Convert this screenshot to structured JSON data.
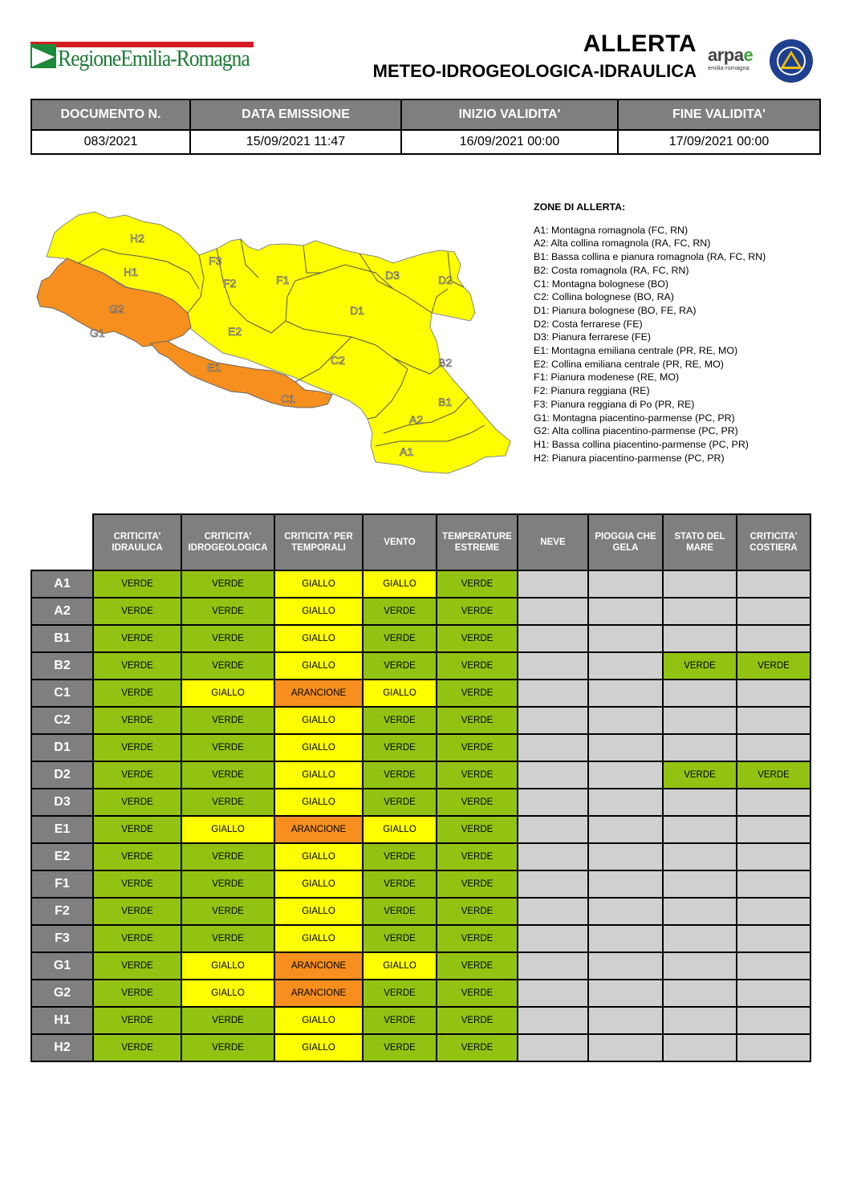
{
  "header": {
    "org_logo_text": "RegioneEmilia-Romagna",
    "title_line1": "ALLERTA",
    "title_line2": "METEO-IDROGEOLOGICA-IDRAULICA",
    "arpae_logo": {
      "name": "arpae",
      "sub": "emilia-romagna"
    },
    "civil_protection_logo_icon": "protezione-civile-emblem"
  },
  "document": {
    "headers": [
      "DOCUMENTO N.",
      "DATA EMISSIONE",
      "INIZIO VALIDITA'",
      "FINE VALIDITA'"
    ],
    "values": [
      "083/2021",
      "15/09/2021 11:47",
      "16/09/2021 00:00",
      "17/09/2021 00:00"
    ]
  },
  "map": {
    "labels": [
      "H2",
      "H1",
      "G2",
      "G1",
      "F3",
      "F2",
      "E2",
      "E1",
      "F1",
      "C1",
      "D3",
      "D2",
      "D1",
      "C2",
      "B2",
      "B1",
      "A2",
      "A1"
    ],
    "colors": {
      "orange": "#f78f1e",
      "yellow": "#fefe00"
    }
  },
  "legend": {
    "title": "ZONE DI ALLERTA:",
    "items": [
      "A1: Montagna romagnola (FC, RN)",
      "A2: Alta collina romagnola (RA, FC, RN)",
      "B1: Bassa collina e pianura romagnola (RA, FC, RN)",
      "B2: Costa romagnola (RA, FC, RN)",
      "C1: Montagna bolognese (BO)",
      "C2: Collina bolognese (BO, RA)",
      "D1: Pianura bolognese (BO, FE, RA)",
      "D2: Costa ferrarese (FE)",
      "D3: Pianura ferrarese (FE)",
      "E1: Montagna emiliana centrale (PR, RE, MO)",
      "E2: Collina emiliana centrale (PR, RE, MO)",
      "F1: Pianura modenese (RE, MO)",
      "F2: Pianura reggiana (RE)",
      "F3: Pianura reggiana di Po (PR, RE)",
      "G1: Montagna piacentino-parmense (PC, PR)",
      "G2: Alta collina piacentino-parmense (PC, PR)",
      "H1: Bassa collina piacentino-parmense (PC, PR)",
      "H2: Pianura piacentino-parmense (PC, PR)"
    ]
  },
  "alert_table": {
    "columns": [
      [
        "CRITICITA'",
        "IDRAULICA"
      ],
      [
        "CRITICITA'",
        "IDROGEOLOGICA"
      ],
      [
        "CRITICITA' PER",
        "TEMPORALI"
      ],
      [
        "VENTO"
      ],
      [
        "TEMPERATURE",
        "ESTREME"
      ],
      [
        "NEVE"
      ],
      [
        "PIOGGIA CHE",
        "GELA"
      ],
      [
        "STATO DEL",
        "MARE"
      ],
      [
        "CRITICITA'",
        "COSTIERA"
      ]
    ],
    "rows": [
      {
        "zone": "A1",
        "values": [
          "VERDE",
          "VERDE",
          "GIALLO",
          "GIALLO",
          "VERDE",
          "",
          "",
          "",
          ""
        ]
      },
      {
        "zone": "A2",
        "values": [
          "VERDE",
          "VERDE",
          "GIALLO",
          "VERDE",
          "VERDE",
          "",
          "",
          "",
          ""
        ]
      },
      {
        "zone": "B1",
        "values": [
          "VERDE",
          "VERDE",
          "GIALLO",
          "VERDE",
          "VERDE",
          "",
          "",
          "",
          ""
        ]
      },
      {
        "zone": "B2",
        "values": [
          "VERDE",
          "VERDE",
          "GIALLO",
          "VERDE",
          "VERDE",
          "",
          "",
          "VERDE",
          "VERDE"
        ]
      },
      {
        "zone": "C1",
        "values": [
          "VERDE",
          "GIALLO",
          "ARANCIONE",
          "GIALLO",
          "VERDE",
          "",
          "",
          "",
          ""
        ]
      },
      {
        "zone": "C2",
        "values": [
          "VERDE",
          "VERDE",
          "GIALLO",
          "VERDE",
          "VERDE",
          "",
          "",
          "",
          ""
        ]
      },
      {
        "zone": "D1",
        "values": [
          "VERDE",
          "VERDE",
          "GIALLO",
          "VERDE",
          "VERDE",
          "",
          "",
          "",
          ""
        ]
      },
      {
        "zone": "D2",
        "values": [
          "VERDE",
          "VERDE",
          "GIALLO",
          "VERDE",
          "VERDE",
          "",
          "",
          "VERDE",
          "VERDE"
        ]
      },
      {
        "zone": "D3",
        "values": [
          "VERDE",
          "VERDE",
          "GIALLO",
          "VERDE",
          "VERDE",
          "",
          "",
          "",
          ""
        ]
      },
      {
        "zone": "E1",
        "values": [
          "VERDE",
          "GIALLO",
          "ARANCIONE",
          "GIALLO",
          "VERDE",
          "",
          "",
          "",
          ""
        ]
      },
      {
        "zone": "E2",
        "values": [
          "VERDE",
          "VERDE",
          "GIALLO",
          "VERDE",
          "VERDE",
          "",
          "",
          "",
          ""
        ]
      },
      {
        "zone": "F1",
        "values": [
          "VERDE",
          "VERDE",
          "GIALLO",
          "VERDE",
          "VERDE",
          "",
          "",
          "",
          ""
        ]
      },
      {
        "zone": "F2",
        "values": [
          "VERDE",
          "VERDE",
          "GIALLO",
          "VERDE",
          "VERDE",
          "",
          "",
          "",
          ""
        ]
      },
      {
        "zone": "F3",
        "values": [
          "VERDE",
          "VERDE",
          "GIALLO",
          "VERDE",
          "VERDE",
          "",
          "",
          "",
          ""
        ]
      },
      {
        "zone": "G1",
        "values": [
          "VERDE",
          "GIALLO",
          "ARANCIONE",
          "GIALLO",
          "VERDE",
          "",
          "",
          "",
          ""
        ]
      },
      {
        "zone": "G2",
        "values": [
          "VERDE",
          "GIALLO",
          "ARANCIONE",
          "VERDE",
          "VERDE",
          "",
          "",
          "",
          ""
        ]
      },
      {
        "zone": "H1",
        "values": [
          "VERDE",
          "VERDE",
          "GIALLO",
          "VERDE",
          "VERDE",
          "",
          "",
          "",
          ""
        ]
      },
      {
        "zone": "H2",
        "values": [
          "VERDE",
          "VERDE",
          "GIALLO",
          "VERDE",
          "VERDE",
          "",
          "",
          "",
          ""
        ]
      }
    ],
    "colors": {
      "VERDE": "#92c313",
      "GIALLO": "#fefe00",
      "ARANCIONE": "#f78f1e",
      "empty": "#d0d0d0",
      "header": "#7f7f7f"
    }
  }
}
